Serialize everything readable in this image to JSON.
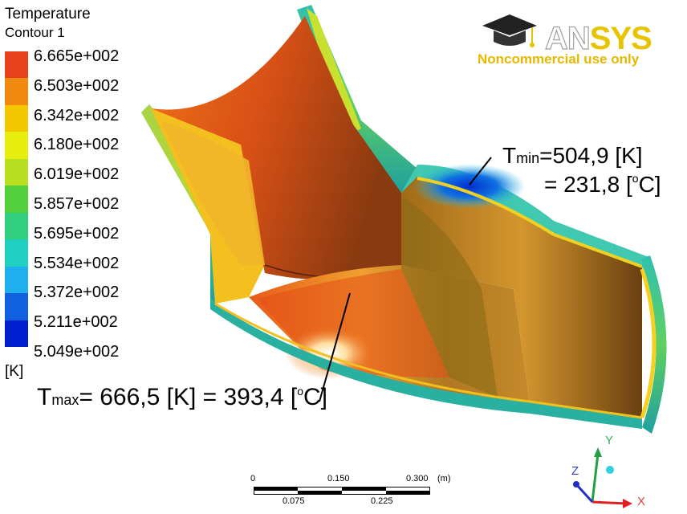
{
  "legend": {
    "title": "Temperature",
    "subtitle": "Contour 1",
    "unit": "[K]",
    "ticks": [
      "6.665e+002",
      "6.503e+002",
      "6.342e+002",
      "6.180e+002",
      "6.019e+002",
      "5.857e+002",
      "5.695e+002",
      "5.534e+002",
      "5.372e+002",
      "5.211e+002",
      "5.049e+002"
    ],
    "colors": [
      "#e8401c",
      "#f08a10",
      "#f4c800",
      "#e8ee10",
      "#b8e020",
      "#54d03c",
      "#30d080",
      "#20d0c0",
      "#20b0f0",
      "#1060e0",
      "#0020d0"
    ]
  },
  "logo": {
    "word_a": "AN",
    "word_b": "SYS",
    "note": "Noncommercial use only"
  },
  "annotations": {
    "tmin_symbol": "T",
    "tmin_sub": "min",
    "tmin_k": "=504,9 [K]",
    "tmin_c_pre": "= 231,8 [",
    "tmin_c_sup": "o",
    "tmin_c_post": "C]",
    "tmax_symbol": "T",
    "tmax_sub": "max",
    "tmax_text": "= 666,5 [K] = 393,4 [",
    "tmax_sup": "o",
    "tmax_post": "C]"
  },
  "scale_bar": {
    "top_labels": [
      "0",
      "0.150",
      "0.300"
    ],
    "bottom_labels": [
      "0.075",
      "0.225"
    ],
    "unit": "(m)"
  },
  "axes": {
    "x": "X",
    "y": "Y",
    "z": "Z"
  }
}
